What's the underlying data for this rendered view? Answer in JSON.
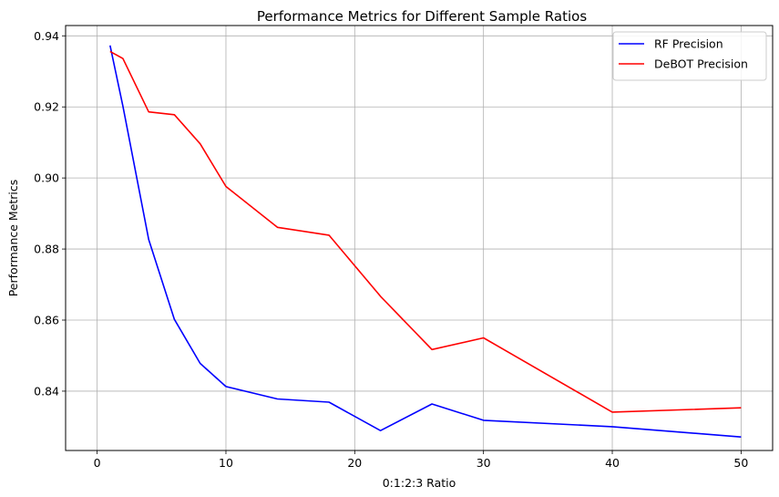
{
  "chart_data": {
    "type": "line",
    "title": "Performance Metrics for Different Sample Ratios",
    "xlabel": "0:1:2:3 Ratio",
    "ylabel": "Performance Metrics",
    "xlim": [
      -2.45,
      52.45
    ],
    "ylim": [
      0.8233,
      0.9429
    ],
    "xticks": [
      0,
      10,
      20,
      30,
      40,
      50
    ],
    "yticks": [
      0.84,
      0.86,
      0.88,
      0.9,
      0.92,
      0.94
    ],
    "xtick_labels": [
      "0",
      "10",
      "20",
      "30",
      "40",
      "50"
    ],
    "ytick_labels": [
      "0.84",
      "0.86",
      "0.88",
      "0.90",
      "0.92",
      "0.94"
    ],
    "grid": true,
    "legend_position": "top-right",
    "x": [
      1,
      2,
      4,
      6,
      8,
      10,
      14,
      18,
      22,
      26,
      30,
      40,
      50
    ],
    "series": [
      {
        "name": "RF Precision",
        "color": "#0000ff",
        "values": [
          0.9373,
          0.9202,
          0.8827,
          0.8602,
          0.8478,
          0.8413,
          0.8378,
          0.8369,
          0.8289,
          0.8364,
          0.8318,
          0.83,
          0.8271
        ]
      },
      {
        "name": "DeBOT Precision",
        "color": "#ff0000",
        "values": [
          0.9356,
          0.9336,
          0.9186,
          0.9178,
          0.9096,
          0.8976,
          0.8861,
          0.8839,
          0.8667,
          0.8517,
          0.855,
          0.8341,
          0.8353
        ]
      }
    ]
  }
}
